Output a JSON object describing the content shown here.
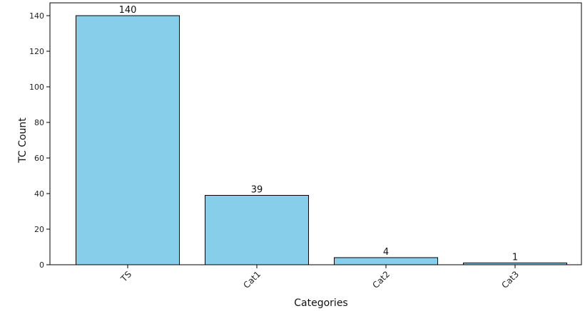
{
  "chart_data": {
    "type": "bar",
    "title": "",
    "xlabel": "Categories",
    "ylabel": "TC Count",
    "categories": [
      "TS",
      "Cat1",
      "Cat2",
      "Cat3"
    ],
    "values": [
      140,
      39,
      4,
      1
    ],
    "data_labels": [
      "140",
      "39",
      "4",
      "1"
    ],
    "ylim": [
      0,
      140
    ],
    "yticks": [
      0,
      20,
      40,
      60,
      80,
      100,
      120,
      140
    ],
    "grid": false,
    "legend": "none",
    "bar_color": "#87CEEB",
    "bar_edge_color": "#000000"
  }
}
